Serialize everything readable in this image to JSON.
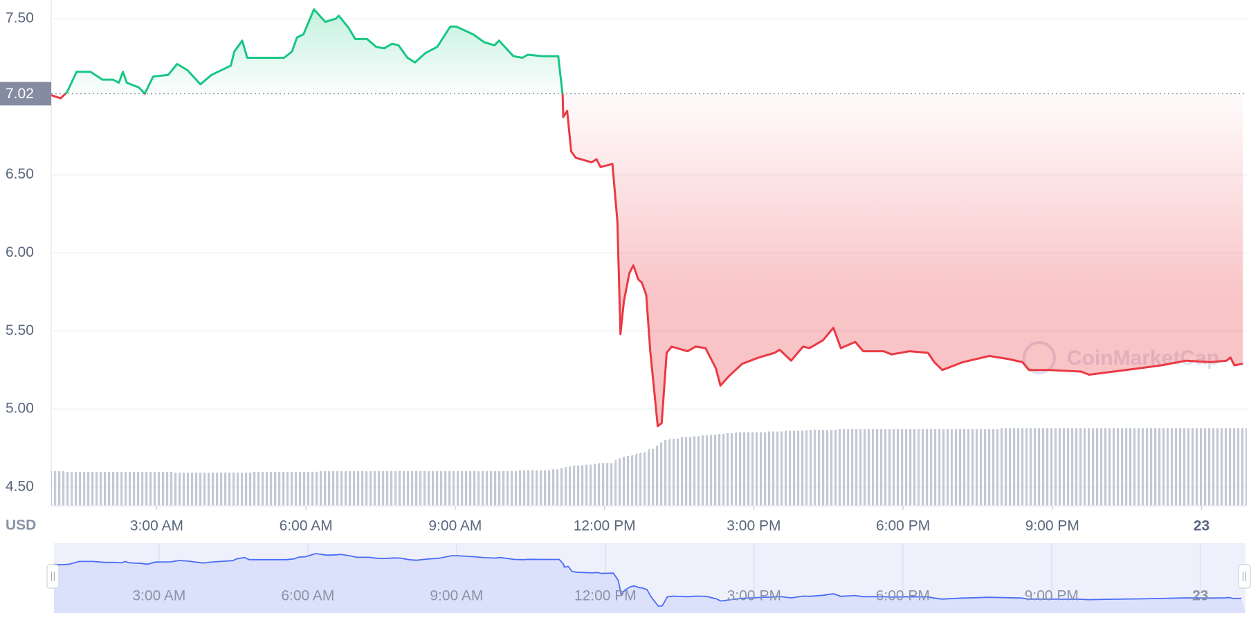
{
  "chart_data": {
    "type": "line",
    "currency": "USD",
    "watermark": "CoinMarketCap",
    "reference": 7.02,
    "colors": {
      "up": "#16c784",
      "down": "#ea3943",
      "volume": "#c3c8d3",
      "navigator": "#4a6cf7"
    },
    "grid": true,
    "xlim": [
      0.88,
      24.91
    ],
    "xticks": [
      {
        "value": 3,
        "label": "3:00 AM"
      },
      {
        "value": 6,
        "label": "6:00 AM"
      },
      {
        "value": 9,
        "label": "9:00 AM"
      },
      {
        "value": 12,
        "label": "12:00 PM"
      },
      {
        "value": 15,
        "label": "3:00 PM"
      },
      {
        "value": 18,
        "label": "6:00 PM"
      },
      {
        "value": 21,
        "label": "9:00 PM"
      },
      {
        "value": 24,
        "label": "23"
      }
    ],
    "ylim": [
      4.38,
      7.62
    ],
    "yticks": [
      {
        "value": 4.5,
        "label": "4.50"
      },
      {
        "value": 5,
        "label": "5.00"
      },
      {
        "value": 5.5,
        "label": "5.50"
      },
      {
        "value": 6,
        "label": "6.00"
      },
      {
        "value": 6.5,
        "label": "6.50"
      },
      {
        "value": 7.5,
        "label": "7.50"
      }
    ],
    "x": [
      0.88,
      1.07,
      1.2,
      1.39,
      1.67,
      1.91,
      2.12,
      2.24,
      2.32,
      2.4,
      2.64,
      2.76,
      2.93,
      3.23,
      3.41,
      3.62,
      3.88,
      4.1,
      4.49,
      4.56,
      4.72,
      4.82,
      5.01,
      5.37,
      5.56,
      5.72,
      5.82,
      5.95,
      6.16,
      6.39,
      6.6,
      6.66,
      6.86,
      6.99,
      7.23,
      7.41,
      7.57,
      7.73,
      7.86,
      8.04,
      8.19,
      8.4,
      8.64,
      8.9,
      9.02,
      9.36,
      9.58,
      9.79,
      9.88,
      10.17,
      10.35,
      10.46,
      10.75,
      11.07,
      11.16,
      11.17,
      11.25,
      11.33,
      11.42,
      11.74,
      11.84,
      11.92,
      12.16,
      12.26,
      12.32,
      12.39,
      12.5,
      12.58,
      12.68,
      12.75,
      12.84,
      12.92,
      13.07,
      13.15,
      13.25,
      13.35,
      13.67,
      13.83,
      14.03,
      14.24,
      14.33,
      14.5,
      14.77,
      15.1,
      15.42,
      15.52,
      15.75,
      15.99,
      16.12,
      16.39,
      16.6,
      16.75,
      17.04,
      17.2,
      17.61,
      17.77,
      18.13,
      18.5,
      18.63,
      18.79,
      19.2,
      19.47,
      19.73,
      20.12,
      20.4,
      20.53,
      20.93,
      21.58,
      21.74,
      22.23,
      22.72,
      23.2,
      23.69,
      24.18,
      24.5,
      24.58,
      24.66,
      24.83
    ],
    "values": [
      7.01,
      6.99,
      7.03,
      7.16,
      7.16,
      7.11,
      7.11,
      7.09,
      7.16,
      7.09,
      7.06,
      7.02,
      7.13,
      7.14,
      7.21,
      7.17,
      7.08,
      7.14,
      7.2,
      7.29,
      7.36,
      7.25,
      7.25,
      7.25,
      7.25,
      7.29,
      7.38,
      7.4,
      7.56,
      7.48,
      7.5,
      7.52,
      7.44,
      7.37,
      7.37,
      7.32,
      7.31,
      7.34,
      7.33,
      7.25,
      7.22,
      7.28,
      7.32,
      7.45,
      7.45,
      7.4,
      7.35,
      7.33,
      7.36,
      7.26,
      7.25,
      7.27,
      7.26,
      7.26,
      7.01,
      6.87,
      6.91,
      6.65,
      6.61,
      6.58,
      6.6,
      6.55,
      6.57,
      6.2,
      5.48,
      5.69,
      5.87,
      5.92,
      5.83,
      5.81,
      5.73,
      5.37,
      4.89,
      4.91,
      5.36,
      5.4,
      5.37,
      5.4,
      5.39,
      5.26,
      5.15,
      5.21,
      5.29,
      5.33,
      5.36,
      5.38,
      5.31,
      5.4,
      5.39,
      5.44,
      5.52,
      5.39,
      5.43,
      5.37,
      5.37,
      5.35,
      5.37,
      5.36,
      5.3,
      5.25,
      5.3,
      5.32,
      5.34,
      5.32,
      5.3,
      5.25,
      5.25,
      5.24,
      5.22,
      5.24,
      5.26,
      5.28,
      5.31,
      5.3,
      5.31,
      5.33,
      5.28,
      5.29
    ],
    "volume": [
      44,
      44,
      43,
      43,
      43,
      43,
      43,
      43,
      43,
      43,
      43,
      43,
      43,
      43,
      42,
      42,
      42,
      42,
      42,
      42,
      42,
      42,
      43,
      43,
      43,
      43,
      43,
      43,
      43,
      44,
      44,
      44,
      44,
      44,
      44,
      44,
      44,
      44,
      44,
      44,
      44,
      44,
      44,
      44,
      44,
      44,
      44,
      44,
      44,
      44,
      45,
      45,
      45,
      46,
      48,
      48,
      49,
      50,
      51,
      52,
      53,
      54,
      54,
      58,
      60,
      62,
      63,
      64,
      66,
      67,
      68,
      72,
      76,
      80,
      83,
      85,
      87,
      88,
      89,
      90,
      91,
      92,
      93,
      93,
      94,
      94,
      95,
      95,
      96,
      96,
      96,
      97,
      97,
      97,
      97,
      97,
      97,
      97,
      97,
      97,
      97,
      97,
      97,
      98,
      98,
      98,
      98,
      98,
      98,
      98,
      98,
      98,
      98,
      98,
      98,
      98,
      98,
      98
    ]
  }
}
